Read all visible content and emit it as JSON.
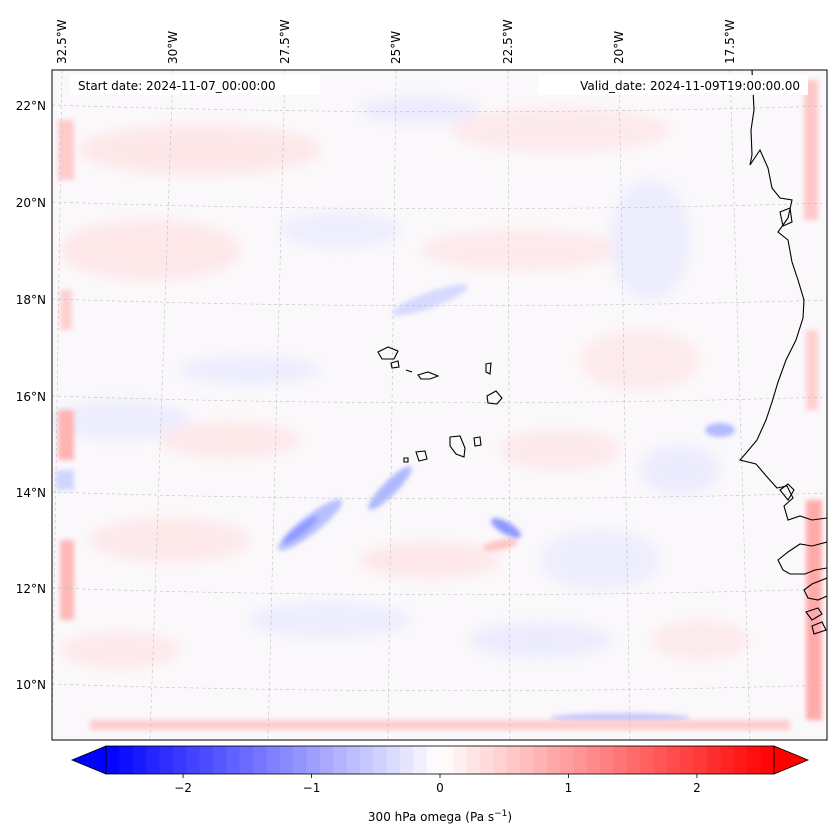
{
  "header": {
    "start_date": "Start date: 2024-11-07_00:00:00",
    "valid_date": "Valid_date: 2024-11-09T19:00:00.00"
  },
  "map": {
    "lon_labels": [
      "32.5°W",
      "30°W",
      "27.5°W",
      "25°W",
      "22.5°W",
      "20°W",
      "17.5°W"
    ],
    "lat_labels": [
      "22°N",
      "20°N",
      "18°N",
      "16°N",
      "14°N",
      "12°N",
      "10°N"
    ],
    "field_name": "300 hPa omega"
  },
  "colorbar": {
    "label_prefix": "300 hPa omega (Pa s",
    "label_exp": "−1",
    "label_suffix": ")",
    "ticks": [
      "−2",
      "−1",
      "0",
      "1",
      "2"
    ],
    "vmin": -2.6,
    "vmax": 2.6,
    "colors": {
      "negative": "#0000ff",
      "neutral": "#ffffff",
      "positive": "#ff0000"
    }
  }
}
